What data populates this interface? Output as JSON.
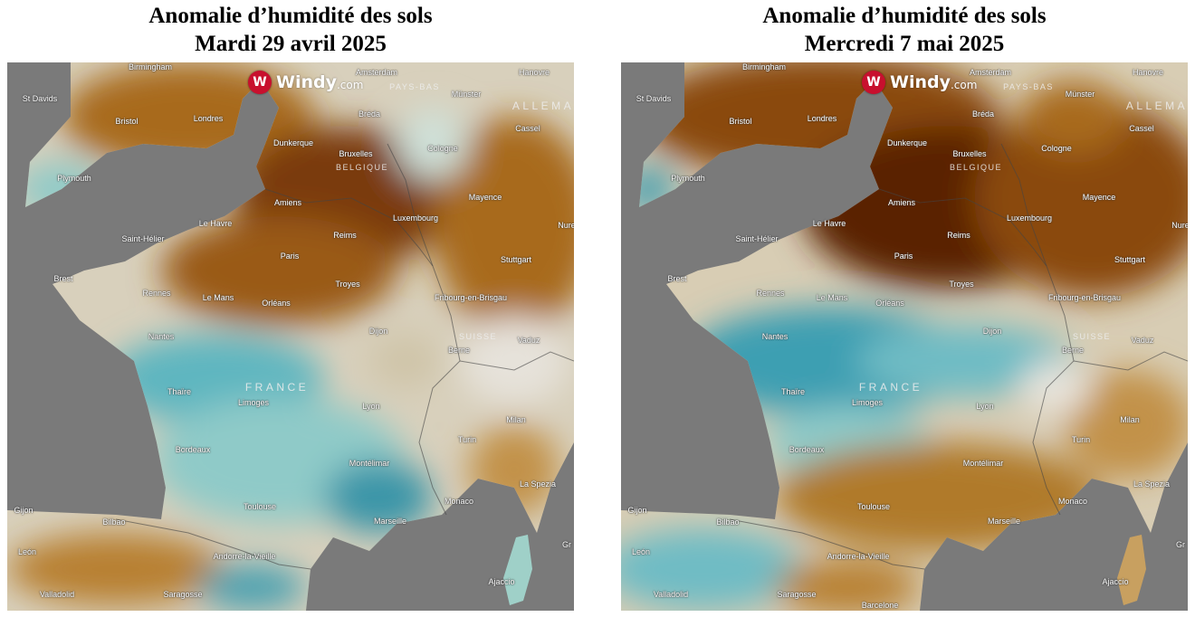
{
  "panels": [
    {
      "title_line1": "Anomalie d’humidité des sols",
      "title_line2": "Mardi 29 avril 2025"
    },
    {
      "title_line1": "Anomalie d’humidité des sols",
      "title_line2": "Mercredi 7 mai 2025"
    }
  ],
  "logo": {
    "badge": "W",
    "text": "Windy",
    "suffix": ".com"
  },
  "colors": {
    "sea": "#7a7a7a",
    "dry": "#7a3a08",
    "neutral": "#e8e4dc",
    "wet": "#3aa6b6"
  },
  "cities": [
    "Birmingham",
    "St Davids",
    "Bristol",
    "Londres",
    "Amsterdam",
    "Hanovre",
    "Münster",
    "Bréda",
    "Cassel",
    "Dunkerque",
    "Bruxelles",
    "Cologne",
    "Plymouth",
    "Amiens",
    "Mayence",
    "Le Havre",
    "Luxembourg",
    "Nure",
    "Saint-Hélier",
    "Reims",
    "Paris",
    "Stuttgart",
    "Brest",
    "Rennes",
    "Le Mans",
    "Orléans",
    "Troyes",
    "Fribourg-en-Brisgau",
    "Nantes",
    "Dijon",
    "Vaduz",
    "Berne",
    "Thaïre",
    "Limoges",
    "Lyon",
    "Milan",
    "Bordeaux",
    "Turin",
    "Montélimar",
    "La Spezia",
    "Toulouse",
    "Monaco",
    "Gijon",
    "Bilbao",
    "Marseille",
    "León",
    "Andorre-la-Vieille",
    "Ajaccio",
    "Valladolid",
    "Saragosse",
    "Barcelone",
    "Gr"
  ],
  "countries": [
    "PAYS-BAS",
    "BELGIQUE",
    "ALLEMA",
    "SUISSE",
    "FRANCE"
  ]
}
